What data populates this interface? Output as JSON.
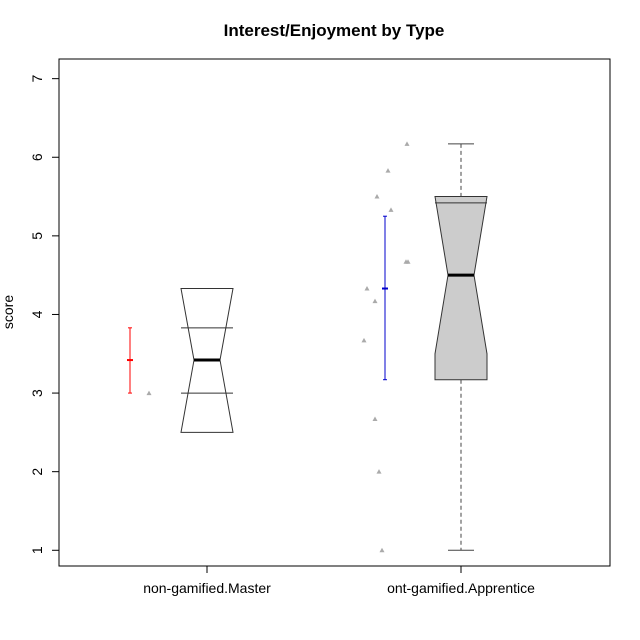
{
  "chart_data": {
    "type": "boxplot",
    "title": "Interest/Enjoyment by Type",
    "xlabel": "",
    "ylabel": "score",
    "ylim": [
      0.8,
      7.25
    ],
    "yticks": [
      1,
      2,
      3,
      4,
      5,
      6,
      7
    ],
    "grid": false,
    "categories": [
      "non-gamified.Master",
      "ont-gamified.Apprentice"
    ],
    "boxes": [
      {
        "category": "non-gamified.Master",
        "whisker_low": 3.0,
        "q1": 3.0,
        "median": 3.42,
        "q3": 3.83,
        "whisker_high": 3.83,
        "notch_low": 2.5,
        "notch_high": 4.33,
        "fill": "#ffffff",
        "whisker_style": "none",
        "mean": 3.42,
        "error_low": 3.0,
        "error_high": 3.83,
        "error_color": "#ff0000",
        "points": [
          3.0
        ]
      },
      {
        "category": "ont-gamified.Apprentice",
        "whisker_low": 1.0,
        "q1": 3.17,
        "median": 4.5,
        "q3": 5.42,
        "whisker_high": 6.17,
        "notch_low": 3.5,
        "notch_high": 5.5,
        "fill": "#cccccc",
        "whisker_style": "dashed",
        "mean": 4.33,
        "error_low": 3.17,
        "error_high": 5.25,
        "error_color": "#0000cc",
        "points": [
          1.0,
          2.0,
          2.67,
          3.67,
          4.17,
          4.33,
          4.67,
          4.67,
          5.33,
          5.5,
          5.83,
          6.17
        ]
      }
    ]
  }
}
